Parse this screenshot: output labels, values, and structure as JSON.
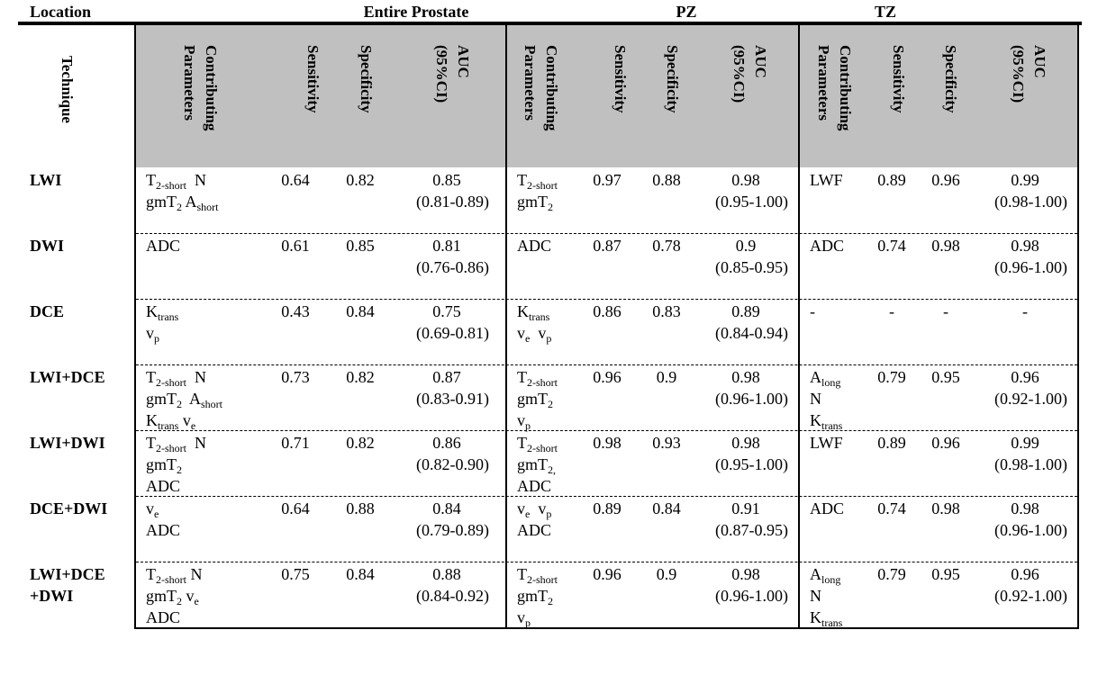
{
  "header": {
    "location": "Location",
    "regions": [
      "Entire Prostate",
      "PZ",
      "TZ"
    ],
    "technique": "Technique",
    "columns": [
      [
        "Contributing",
        "Parameters"
      ],
      [
        "Sensitivity"
      ],
      [
        "Specificity"
      ],
      [
        "AUC",
        "(95%CI)"
      ]
    ]
  },
  "rows": [
    {
      "technique": [
        "LWI"
      ],
      "regions": [
        {
          "params": [
            [
              {
                "t": "T",
                "s": "2-short"
              },
              {
                "t": "  N"
              }
            ],
            [
              {
                "t": "gmT",
                "s": "2"
              },
              {
                "t": " A",
                "s": "short"
              }
            ]
          ],
          "sensitivity": 0.64,
          "specificity": 0.82,
          "auc": 0.85,
          "ci": "(0.81-0.89)"
        },
        {
          "params": [
            [
              {
                "t": "T",
                "s": "2-short"
              }
            ],
            [
              {
                "t": "gmT",
                "s": "2"
              }
            ]
          ],
          "sensitivity": 0.97,
          "specificity": 0.88,
          "auc": 0.98,
          "ci": "(0.95-1.00)"
        },
        {
          "params": [
            [
              {
                "t": "LWF"
              }
            ]
          ],
          "sensitivity": 0.89,
          "specificity": 0.96,
          "auc": 0.99,
          "ci": "(0.98-1.00)"
        }
      ]
    },
    {
      "technique": [
        "DWI"
      ],
      "regions": [
        {
          "params": [
            [
              {
                "t": "ADC"
              }
            ]
          ],
          "sensitivity": 0.61,
          "specificity": 0.85,
          "auc": 0.81,
          "ci": "(0.76-0.86)"
        },
        {
          "params": [
            [
              {
                "t": "ADC"
              }
            ]
          ],
          "sensitivity": 0.87,
          "specificity": 0.78,
          "auc": 0.9,
          "ci": "(0.85-0.95)"
        },
        {
          "params": [
            [
              {
                "t": "ADC"
              }
            ]
          ],
          "sensitivity": 0.74,
          "specificity": 0.98,
          "auc": 0.98,
          "ci": "(0.96-1.00)"
        }
      ]
    },
    {
      "technique": [
        "DCE"
      ],
      "regions": [
        {
          "params": [
            [
              {
                "t": "K",
                "s": "trans"
              }
            ],
            [
              {
                "t": "v",
                "s": "p"
              }
            ]
          ],
          "sensitivity": 0.43,
          "specificity": 0.84,
          "auc": 0.75,
          "ci": "(0.69-0.81)"
        },
        {
          "params": [
            [
              {
                "t": "K",
                "s": "trans"
              }
            ],
            [
              {
                "t": "v",
                "s": "e"
              },
              {
                "t": "  v",
                "s": "p"
              }
            ]
          ],
          "sensitivity": 0.86,
          "specificity": 0.83,
          "auc": 0.89,
          "ci": "(0.84-0.94)"
        },
        {
          "params": [
            [
              {
                "t": "-"
              }
            ]
          ],
          "sensitivity": "-",
          "specificity": "-",
          "auc": "-"
        }
      ]
    },
    {
      "technique": [
        "LWI+DCE"
      ],
      "regions": [
        {
          "params": [
            [
              {
                "t": "T",
                "s": "2-short"
              },
              {
                "t": "  N"
              }
            ],
            [
              {
                "t": "gmT",
                "s": "2"
              },
              {
                "t": "  A",
                "s": "short"
              }
            ],
            [
              {
                "t": "K",
                "s": "trans"
              },
              {
                "t": " v",
                "s": "e"
              }
            ]
          ],
          "sensitivity": 0.73,
          "specificity": 0.82,
          "auc": 0.87,
          "ci": "(0.83-0.91)"
        },
        {
          "params": [
            [
              {
                "t": "T",
                "s": "2-short"
              }
            ],
            [
              {
                "t": "gmT",
                "s": "2"
              }
            ],
            [
              {
                "t": "v",
                "s": "p"
              }
            ]
          ],
          "sensitivity": 0.96,
          "specificity": 0.9,
          "auc": 0.98,
          "ci": "(0.96-1.00)"
        },
        {
          "params": [
            [
              {
                "t": "A",
                "s": "long"
              }
            ],
            [
              {
                "t": "N"
              }
            ],
            [
              {
                "t": "K",
                "s": "trans"
              }
            ]
          ],
          "sensitivity": 0.79,
          "specificity": 0.95,
          "auc": 0.96,
          "ci": "(0.92-1.00)"
        }
      ]
    },
    {
      "technique": [
        "LWI+DWI"
      ],
      "regions": [
        {
          "params": [
            [
              {
                "t": "T",
                "s": "2-short"
              },
              {
                "t": "  N"
              }
            ],
            [
              {
                "t": "gmT",
                "s": "2"
              }
            ],
            [
              {
                "t": "ADC"
              }
            ]
          ],
          "sensitivity": 0.71,
          "specificity": 0.82,
          "auc": 0.86,
          "ci": "(0.82-0.90)"
        },
        {
          "params": [
            [
              {
                "t": "T",
                "s": "2-short"
              }
            ],
            [
              {
                "t": "gmT",
                "s": "2,"
              }
            ],
            [
              {
                "t": "ADC"
              }
            ]
          ],
          "sensitivity": 0.98,
          "specificity": 0.93,
          "auc": 0.98,
          "ci": "(0.95-1.00)"
        },
        {
          "params": [
            [
              {
                "t": "LWF"
              }
            ]
          ],
          "sensitivity": 0.89,
          "specificity": 0.96,
          "auc": 0.99,
          "ci": "(0.98-1.00)"
        }
      ]
    },
    {
      "technique": [
        "DCE+DWI"
      ],
      "regions": [
        {
          "params": [
            [
              {
                "t": "v",
                "s": "e"
              }
            ],
            [
              {
                "t": "ADC"
              }
            ]
          ],
          "sensitivity": 0.64,
          "specificity": 0.88,
          "auc": 0.84,
          "ci": "(0.79-0.89)"
        },
        {
          "params": [
            [
              {
                "t": "v",
                "s": "e"
              },
              {
                "t": "  v",
                "s": "p"
              }
            ],
            [
              {
                "t": "ADC"
              }
            ]
          ],
          "sensitivity": 0.89,
          "specificity": 0.84,
          "auc": 0.91,
          "ci": "(0.87-0.95)"
        },
        {
          "params": [
            [
              {
                "t": "ADC"
              }
            ]
          ],
          "sensitivity": 0.74,
          "specificity": 0.98,
          "auc": 0.98,
          "ci": "(0.96-1.00)"
        }
      ]
    },
    {
      "technique": [
        "LWI+DCE",
        "+DWI"
      ],
      "regions": [
        {
          "params": [
            [
              {
                "t": "T",
                "s": "2-short"
              },
              {
                "t": " N"
              }
            ],
            [
              {
                "t": "gmT",
                "s": "2"
              },
              {
                "t": " v",
                "s": "e"
              }
            ],
            [
              {
                "t": "ADC"
              }
            ]
          ],
          "sensitivity": 0.75,
          "specificity": 0.84,
          "auc": 0.88,
          "ci": "(0.84-0.92)"
        },
        {
          "params": [
            [
              {
                "t": "T",
                "s": "2-short"
              }
            ],
            [
              {
                "t": "gmT",
                "s": "2"
              }
            ],
            [
              {
                "t": "v",
                "s": "p"
              }
            ]
          ],
          "sensitivity": 0.96,
          "specificity": 0.9,
          "auc": 0.98,
          "ci": "(0.96-1.00)"
        },
        {
          "params": [
            [
              {
                "t": "A",
                "s": "long"
              }
            ],
            [
              {
                "t": "N"
              }
            ],
            [
              {
                "t": "K",
                "s": "trans"
              }
            ]
          ],
          "sensitivity": 0.79,
          "specificity": 0.95,
          "auc": 0.96,
          "ci": "(0.92-1.00)"
        }
      ]
    }
  ]
}
